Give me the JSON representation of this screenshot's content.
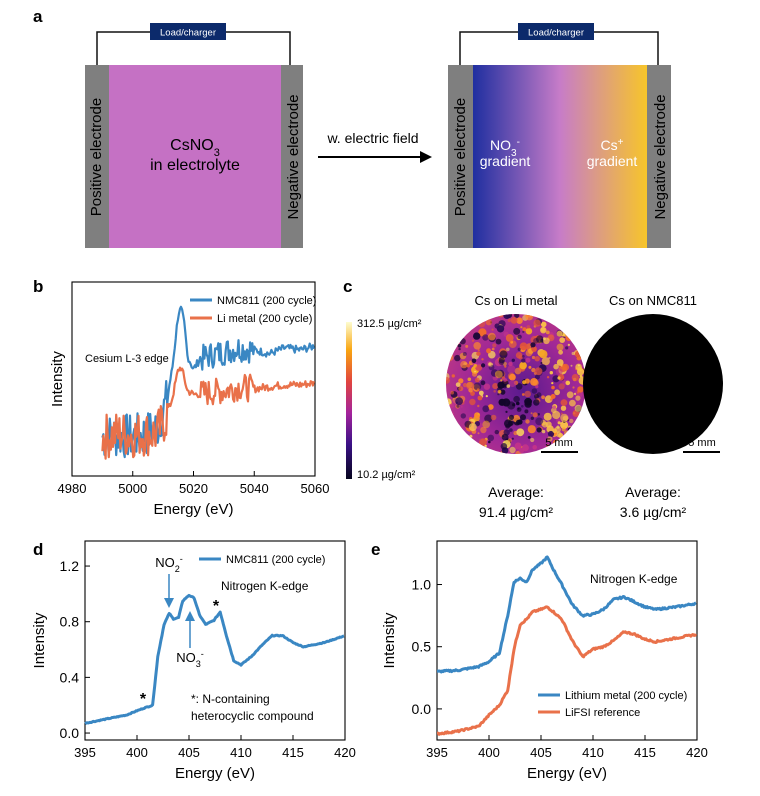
{
  "panel_a": {
    "letter": "a",
    "load_label": "Load/charger",
    "positive_label": "Positive electrode",
    "negative_label": "Negative electrode",
    "left_main_1": "CsNO",
    "left_main_sub": "3",
    "left_main_2": "in electrolyte",
    "arrow_label": "w. electric field",
    "no3_label": "NO",
    "no3_sub": "3",
    "no3_sup": "-",
    "cs_label": "Cs",
    "cs_sup": "+",
    "gradient_word": "gradient",
    "colors": {
      "electrolyte": "#c571c4",
      "electrode": "#7f7f7f",
      "load_box": "#0c2a6b",
      "grad_left": "#1f2fa0",
      "grad_mid": "#c77cc8",
      "grad_right": "#f7c52a"
    }
  },
  "panel_c": {
    "letter": "c",
    "colorbar_max": "312.5 µg/cm²",
    "colorbar_min": "10.2 µg/cm²",
    "title_li": "Cs on Li metal",
    "title_nmc": "Cs on NMC811",
    "scalebar": "5 mm",
    "avg_label": "Average:",
    "avg_li": "91.4 µg/cm²",
    "avg_nmc": "3.6 µg/cm²"
  },
  "chart_data": [
    {
      "type": "line",
      "panel": "b",
      "title": "",
      "annotation": "Cesium L-3 edge",
      "xlabel": "Energy (eV)",
      "ylabel": "Intensity",
      "xlim": [
        4980,
        5060
      ],
      "xticks": [
        4980,
        5000,
        5020,
        5040,
        5060
      ],
      "ylim": [
        0,
        1
      ],
      "legend": "top-right",
      "series": [
        {
          "name": "NMC811 (200 cycle)",
          "color": "#3a87c3",
          "x": [
            4990,
            4995,
            5000,
            5005,
            5008,
            5011,
            5013,
            5015,
            5016,
            5017,
            5018,
            5020,
            5022,
            5025,
            5030,
            5035,
            5040,
            5045,
            5050,
            5055,
            5060
          ],
          "y": [
            0.2,
            0.21,
            0.2,
            0.22,
            0.25,
            0.38,
            0.55,
            0.84,
            0.86,
            0.78,
            0.62,
            0.55,
            0.6,
            0.62,
            0.64,
            0.66,
            0.65,
            0.63,
            0.66,
            0.65,
            0.67
          ]
        },
        {
          "name": "Li metal (200 cycle)",
          "color": "#e9714a",
          "x": [
            4990,
            4995,
            5000,
            5005,
            5008,
            5011,
            5013,
            5015,
            5016,
            5017,
            5018,
            5020,
            5025,
            5030,
            5035,
            5040,
            5045,
            5050,
            5055,
            5060
          ],
          "y": [
            0.2,
            0.22,
            0.21,
            0.22,
            0.22,
            0.3,
            0.4,
            0.55,
            0.56,
            0.5,
            0.44,
            0.42,
            0.43,
            0.44,
            0.46,
            0.45,
            0.46,
            0.47,
            0.47,
            0.48
          ]
        }
      ]
    },
    {
      "type": "line",
      "panel": "d",
      "title": "",
      "annotation": "Nitrogen K-edge",
      "xlabel": "Energy (eV)",
      "ylabel": "Intensity",
      "xlim": [
        395,
        420
      ],
      "ylim": [
        -0.05,
        1.38
      ],
      "xticks": [
        395,
        400,
        405,
        410,
        415,
        420
      ],
      "yticks": [
        0.0,
        0.4,
        0.8,
        1.2
      ],
      "legend": "top-right",
      "labels": {
        "no2": "NO",
        "no2_sub": "2",
        "no2_sup": "-",
        "no3": "NO",
        "no3_sub": "3",
        "no3_sup": "-",
        "star": "*",
        "footnote_1": "*: N-containing",
        "footnote_2": "heterocyclic compound"
      },
      "series": [
        {
          "name": "NMC811 (200 cycle)",
          "color": "#3a87c3",
          "x": [
            395,
            397,
            399,
            400,
            400.7,
            401.5,
            402,
            402.6,
            403.1,
            403.5,
            404,
            404.4,
            405,
            405.5,
            406,
            406.6,
            407.4,
            408,
            408.6,
            409.3,
            410,
            411,
            412,
            413,
            414,
            415,
            416,
            418,
            420
          ],
          "y": [
            0.07,
            0.1,
            0.13,
            0.16,
            0.18,
            0.2,
            0.55,
            0.78,
            0.86,
            0.82,
            0.83,
            0.95,
            0.99,
            0.97,
            0.85,
            0.78,
            0.81,
            0.87,
            0.7,
            0.52,
            0.49,
            0.55,
            0.63,
            0.7,
            0.7,
            0.65,
            0.62,
            0.65,
            0.7
          ]
        }
      ]
    },
    {
      "type": "line",
      "panel": "e",
      "title": "",
      "annotation": "Nitrogen K-edge",
      "xlabel": "Energy (eV)",
      "ylabel": "Intensity",
      "xlim": [
        395,
        420
      ],
      "ylim": [
        -0.25,
        1.35
      ],
      "xticks": [
        395,
        400,
        405,
        410,
        415,
        420
      ],
      "yticks": [
        0.0,
        0.5,
        1.0
      ],
      "legend": "bottom-right",
      "series": [
        {
          "name": "Lithium metal (200 cycle)",
          "color": "#3a87c3",
          "x": [
            395,
            397,
            399,
            400,
            401,
            401.8,
            402.4,
            403,
            403.6,
            404.2,
            405,
            405.6,
            406.2,
            407,
            408,
            409,
            410,
            411,
            412,
            413,
            414,
            415,
            416,
            418,
            420
          ],
          "y": [
            0.3,
            0.31,
            0.34,
            0.38,
            0.45,
            0.75,
            1.02,
            1.05,
            1.02,
            1.12,
            1.17,
            1.22,
            1.12,
            1.0,
            0.84,
            0.75,
            0.76,
            0.8,
            0.88,
            0.9,
            0.86,
            0.82,
            0.8,
            0.82,
            0.85
          ]
        },
        {
          "name": "LiFSI reference",
          "color": "#e9714a",
          "x": [
            395,
            397,
            399,
            400,
            401,
            401.8,
            402.4,
            403,
            403.6,
            404.2,
            405,
            405.6,
            406.2,
            407,
            408,
            409,
            410,
            411,
            412,
            413,
            414,
            415,
            416,
            418,
            420
          ],
          "y": [
            -0.2,
            -0.18,
            -0.14,
            -0.05,
            0.03,
            0.15,
            0.48,
            0.68,
            0.72,
            0.78,
            0.8,
            0.82,
            0.78,
            0.72,
            0.55,
            0.42,
            0.48,
            0.5,
            0.55,
            0.62,
            0.6,
            0.56,
            0.54,
            0.57,
            0.6
          ]
        }
      ]
    }
  ]
}
